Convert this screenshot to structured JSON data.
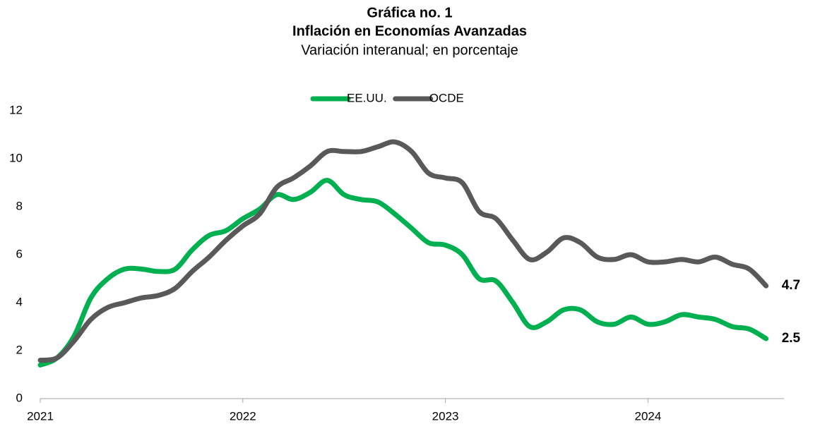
{
  "chart_data": {
    "type": "line",
    "title": "Gráfica no. 1",
    "subtitle": "Inflación en Economías Avanzadas",
    "subtitle2": "Variación interanual; en porcentaje",
    "categories": [
      "2021",
      null,
      null,
      null,
      null,
      null,
      null,
      null,
      null,
      null,
      null,
      null,
      "2022",
      null,
      null,
      null,
      null,
      null,
      null,
      null,
      null,
      null,
      null,
      null,
      "2023",
      null,
      null,
      null,
      null,
      null,
      null,
      null,
      null,
      null,
      null,
      null,
      "2024",
      null,
      null,
      null,
      null,
      null,
      null,
      null
    ],
    "series": [
      {
        "name": "EE.UU.",
        "color": "#00b050",
        "end_label": true,
        "values": [
          1.4,
          1.7,
          2.6,
          4.2,
          5.0,
          5.4,
          5.4,
          5.3,
          5.4,
          6.2,
          6.8,
          7.0,
          7.5,
          7.9,
          8.5,
          8.3,
          8.6,
          9.1,
          8.5,
          8.3,
          8.2,
          7.7,
          7.1,
          6.5,
          6.4,
          6.0,
          5.0,
          4.9,
          4.0,
          3.0,
          3.2,
          3.7,
          3.7,
          3.2,
          3.1,
          3.4,
          3.1,
          3.2,
          3.5,
          3.4,
          3.3,
          3.0,
          2.9,
          2.5
        ]
      },
      {
        "name": "OCDE",
        "color": "#595959",
        "end_label": true,
        "values": [
          1.6,
          1.7,
          2.4,
          3.3,
          3.8,
          4.0,
          4.2,
          4.3,
          4.6,
          5.3,
          5.9,
          6.6,
          7.2,
          7.7,
          8.8,
          9.2,
          9.7,
          10.3,
          10.3,
          10.3,
          10.5,
          10.7,
          10.3,
          9.4,
          9.2,
          9.0,
          7.8,
          7.5,
          6.6,
          5.8,
          6.1,
          6.7,
          6.5,
          5.9,
          5.8,
          6.0,
          5.7,
          5.7,
          5.8,
          5.7,
          5.9,
          5.6,
          5.4,
          4.7
        ]
      }
    ],
    "ylim": [
      0,
      12
    ],
    "yticks": [
      0,
      2,
      4,
      6,
      8,
      10,
      12
    ],
    "grid": false,
    "legend": "top"
  }
}
